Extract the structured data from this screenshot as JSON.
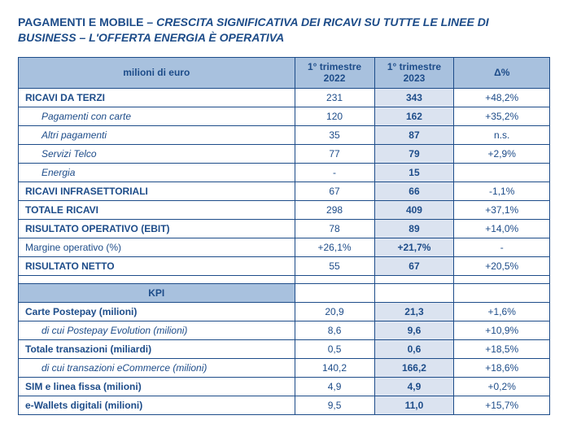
{
  "title_lead": "PAGAMENTI E MOBILE – ",
  "title_rest": "CRESCITA SIGNIFICATIVA DEI RICAVI SU TUTTE LE LINEE DI BUSINESS – L'OFFERTA ENERGIA È OPERATIVA",
  "colors": {
    "text": "#1d4c89",
    "header_bg": "#a8c1de",
    "highlight_bg": "#dbe3f0",
    "border": "#1d4c89",
    "page_bg": "#ffffff"
  },
  "headers": {
    "label": "milioni di euro",
    "q1_2022": "1° trimestre 2022",
    "q1_2023": "1° trimestre 2023",
    "delta": "Δ%",
    "kpi": "KPI"
  },
  "rows": [
    {
      "style": "bold",
      "label": "RICAVI DA TERZI",
      "v22": "231",
      "v23": "343",
      "d": "+48,2%"
    },
    {
      "style": "sub",
      "label": "Pagamenti con carte",
      "v22": "120",
      "v23": "162",
      "d": "+35,2%"
    },
    {
      "style": "sub",
      "label": "Altri pagamenti",
      "v22": "35",
      "v23": "87",
      "d": "n.s."
    },
    {
      "style": "sub",
      "label": "Servizi Telco",
      "v22": "77",
      "v23": "79",
      "d": "+2,9%"
    },
    {
      "style": "sub",
      "label": "Energia",
      "v22": "-",
      "v23": "15",
      "d": ""
    },
    {
      "style": "bold",
      "label": "RICAVI INFRASETTORIALI",
      "v22": "67",
      "v23": "66",
      "d": "-1,1%"
    },
    {
      "style": "bold",
      "label": "TOTALE RICAVI",
      "v22": "298",
      "v23": "409",
      "d": "+37,1%"
    },
    {
      "style": "bold",
      "label": "RISULTATO OPERATIVO (EBIT)",
      "v22": "78",
      "v23": "89",
      "d": "+14,0%"
    },
    {
      "style": "",
      "label": "Margine operativo (%)",
      "v22": "+26,1%",
      "v23": "+21,7%",
      "d": "-"
    },
    {
      "style": "bold",
      "label": "RISULTATO NETTO",
      "v22": "55",
      "v23": "67",
      "d": "+20,5%"
    }
  ],
  "kpi_rows": [
    {
      "style": "bold",
      "label": "Carte Postepay (milioni)",
      "v22": "20,9",
      "v23": "21,3",
      "d": "+1,6%"
    },
    {
      "style": "sub",
      "label": "di cui Postepay Evolution (milioni)",
      "v22": "8,6",
      "v23": "9,6",
      "d": "+10,9%"
    },
    {
      "style": "bold",
      "label": "Totale transazioni  (miliardi)",
      "v22": "0,5",
      "v23": "0,6",
      "d": "+18,5%"
    },
    {
      "style": "sub",
      "label": "di cui transazioni eCommerce (milioni)",
      "v22": "140,2",
      "v23": "166,2",
      "d": "+18,6%"
    },
    {
      "style": "bold",
      "label": "SIM e linea fissa (milioni)",
      "v22": "4,9",
      "v23": "4,9",
      "d": "+0,2%"
    },
    {
      "style": "bold",
      "label": "e-Wallets digitali (milioni)",
      "v22": "9,5",
      "v23": "11,0",
      "d": "+15,7%"
    }
  ]
}
